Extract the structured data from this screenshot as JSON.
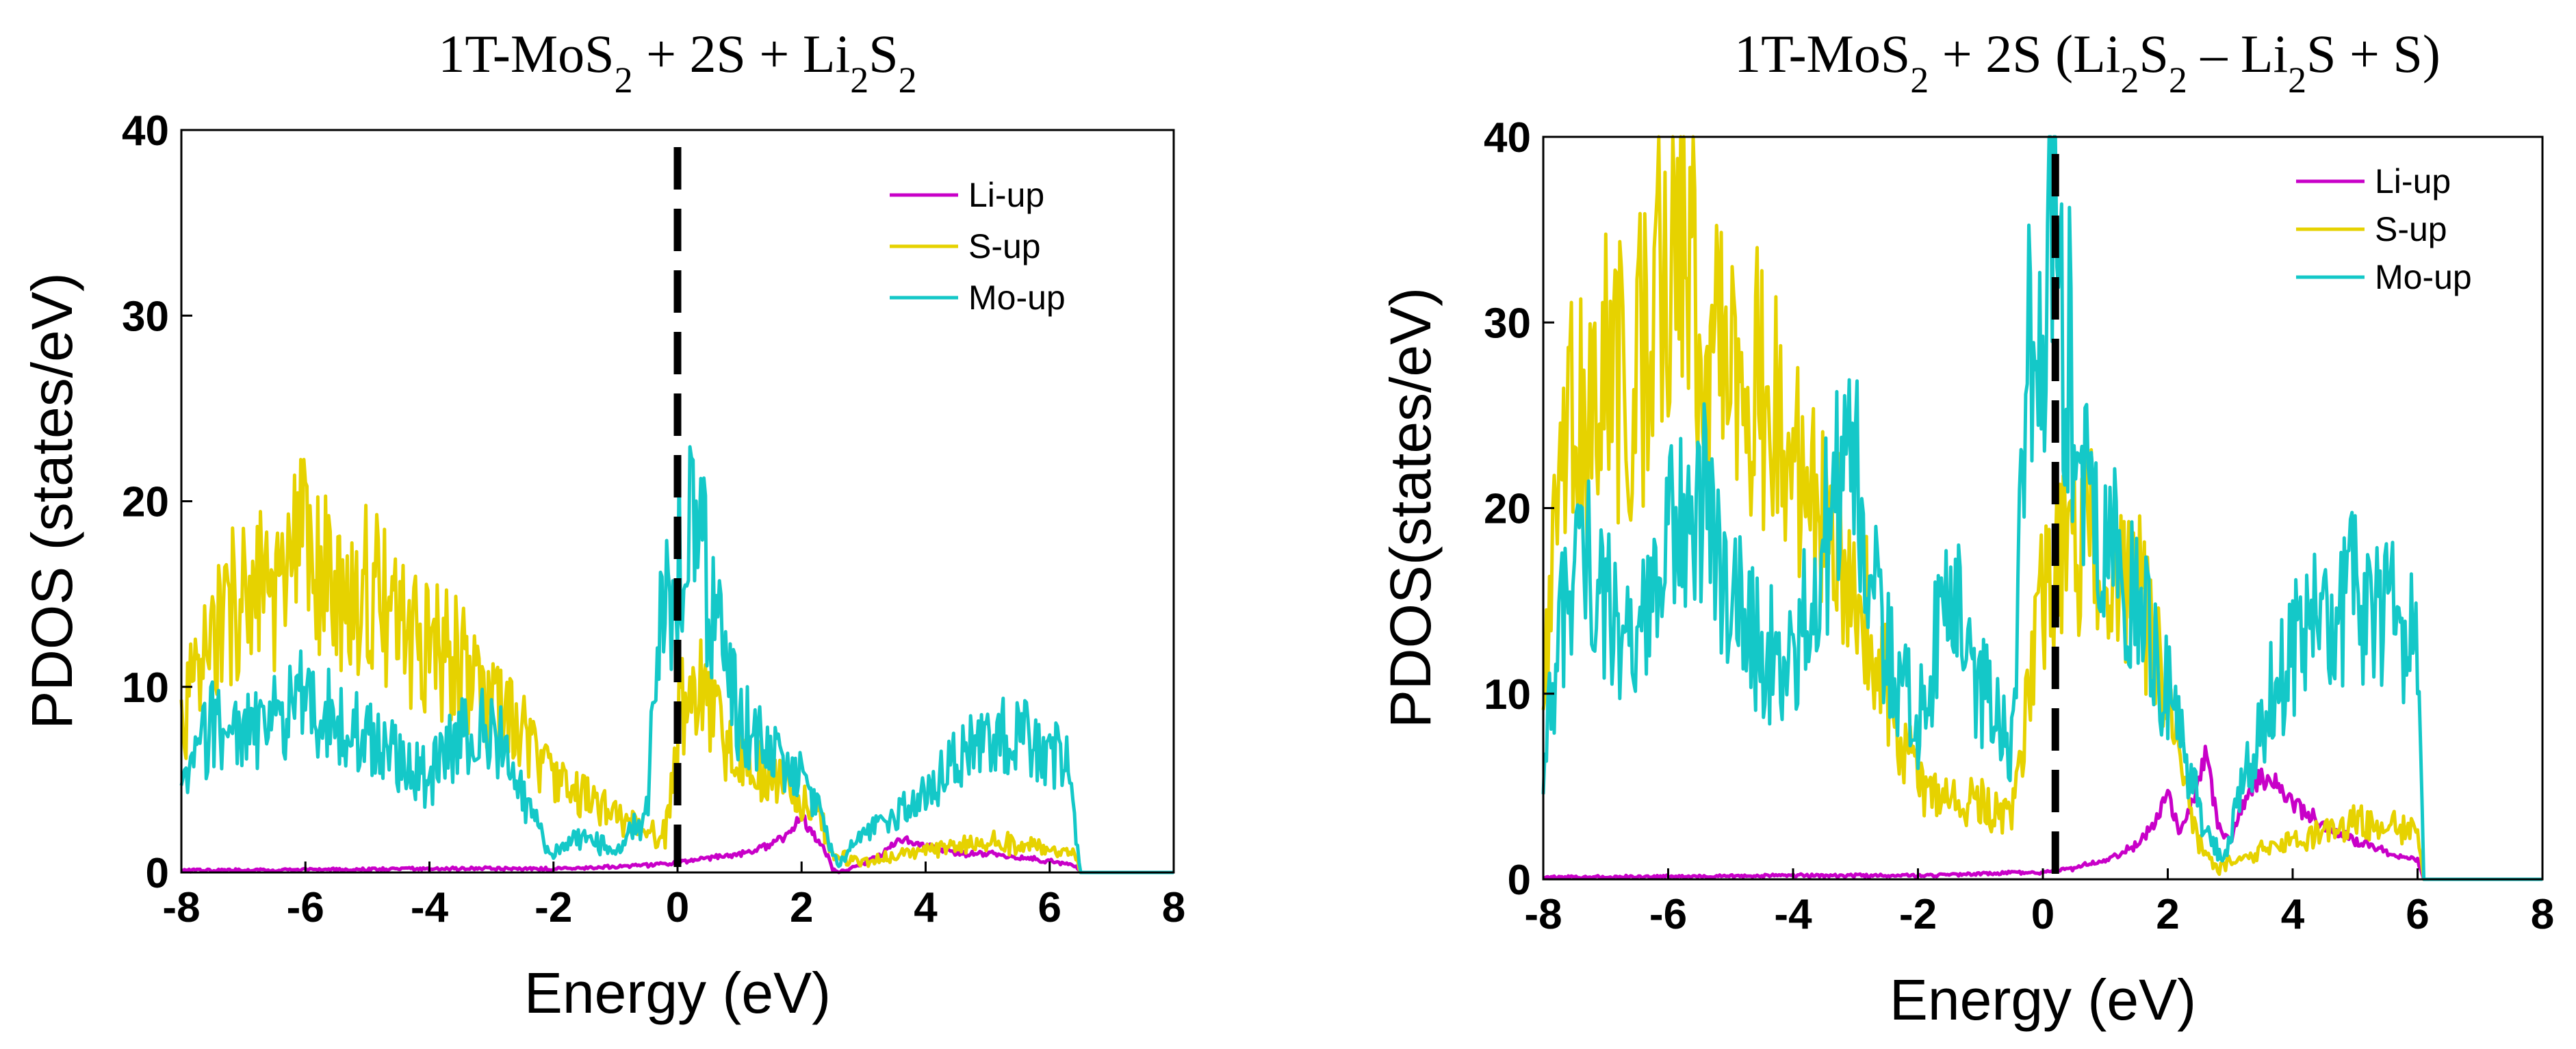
{
  "chart_data": [
    {
      "type": "line",
      "title_parts": {
        "a": "1T-MoS",
        "sub1": "2",
        "b": " + 2S + Li",
        "sub2": "2",
        "c": "S",
        "sub3": "2",
        "d": ""
      },
      "xlabel": "Energy (eV)",
      "ylabel": "PDOS (states/eV)",
      "xlim": [
        -8,
        8
      ],
      "ylim": [
        0,
        40
      ],
      "xticks": [
        -8,
        -6,
        -4,
        -2,
        0,
        2,
        4,
        6,
        8
      ],
      "yticks": [
        0,
        10,
        20,
        30,
        40
      ],
      "fermi_level": 0,
      "legend_position": "top-right",
      "series": [
        {
          "name": "Li-up",
          "color": "#c800c8",
          "x": [
            -8,
            -4,
            -2,
            -1,
            0,
            0.5,
            1,
            1.5,
            1.8,
            2.0,
            2.2,
            2.3,
            2.4,
            2.5,
            2.6,
            3.0,
            3.3,
            3.6,
            4.0,
            4.5,
            5.0,
            5.5,
            6.0,
            6.4,
            6.5,
            8
          ],
          "y": [
            0.1,
            0.2,
            0.2,
            0.3,
            0.5,
            0.8,
            1.0,
            1.5,
            2.0,
            3.0,
            2.0,
            1.5,
            1.0,
            0.2,
            0.0,
            0.5,
            1.0,
            1.8,
            1.4,
            1.0,
            1.0,
            0.8,
            0.6,
            0.4,
            0.0,
            0.0
          ]
        },
        {
          "name": "S-up",
          "color": "#e6d200",
          "x": [
            -8,
            -7.5,
            -7,
            -6.5,
            -6,
            -5.5,
            -5,
            -4.5,
            -4,
            -3.5,
            -3,
            -2.5,
            -2,
            -1.5,
            -1,
            -0.5,
            -0.2,
            0,
            0.3,
            0.6,
            1,
            1.5,
            2,
            2.3,
            2.5,
            3,
            3.5,
            4,
            4.5,
            5,
            5.5,
            6,
            6.4,
            6.5,
            8
          ],
          "y": [
            8,
            12,
            15,
            14,
            17,
            14,
            15,
            13,
            12,
            11,
            9,
            7,
            5,
            4,
            3,
            2,
            2,
            8,
            10,
            8,
            6,
            5,
            4,
            3,
            1,
            0.5,
            0.8,
            1.2,
            1.4,
            1.6,
            1.5,
            1.2,
            1.0,
            0.0,
            0.0
          ]
        },
        {
          "name": "Mo-up",
          "color": "#14c8c8",
          "x": [
            -8,
            -7.5,
            -7,
            -6.5,
            -6,
            -5.5,
            -5,
            -4.5,
            -4,
            -3.5,
            -3,
            -2.5,
            -2.2,
            -2,
            -1.5,
            -1,
            -0.5,
            -0.3,
            0,
            0.3,
            0.6,
            1,
            1.5,
            2,
            2.3,
            2.5,
            2.6,
            3.0,
            3.5,
            4,
            4.5,
            5,
            5.5,
            6,
            6.3,
            6.5,
            8
          ],
          "y": [
            4,
            8,
            7,
            8,
            9,
            8,
            7,
            6,
            5,
            7,
            8,
            4,
            2,
            1,
            2,
            1,
            3,
            12,
            17,
            18,
            13,
            8,
            6,
            5,
            3,
            1,
            0.5,
            2,
            3,
            4,
            6,
            7,
            7,
            6,
            6,
            0.0,
            0.0
          ]
        }
      ]
    },
    {
      "type": "line",
      "title_parts": {
        "a": "1T-MoS",
        "sub1": "2",
        "b": " + 2S (Li",
        "sub2": "2",
        "c": "S",
        "sub3": "2",
        "d": " – Li",
        "sub4": "2",
        "e": "S + S)"
      },
      "xlabel": "Energy (eV)",
      "ylabel": "PDOS(states/eV)",
      "xlim": [
        -8,
        8
      ],
      "ylim": [
        0,
        40
      ],
      "xticks": [
        -8,
        -6,
        -4,
        -2,
        0,
        2,
        4,
        6,
        8
      ],
      "yticks": [
        0,
        10,
        20,
        30,
        40
      ],
      "fermi_level": 0.2,
      "legend_position": "top-right",
      "series": [
        {
          "name": "Li-up",
          "color": "#c800c8",
          "x": [
            -8,
            -4,
            -2,
            -1,
            0,
            0.5,
            1,
            1.5,
            1.8,
            2.0,
            2.2,
            2.4,
            2.6,
            2.8,
            3.0,
            3.3,
            3.6,
            4.0,
            4.5,
            5.0,
            5.5,
            6.0,
            6.1,
            8
          ],
          "y": [
            0.1,
            0.2,
            0.2,
            0.3,
            0.4,
            0.6,
            1.0,
            1.8,
            3.0,
            4.5,
            2.5,
            4.0,
            7.0,
            3.0,
            2.0,
            5.0,
            5.5,
            4.0,
            3.0,
            2.0,
            1.5,
            1.0,
            0.0,
            0.0
          ]
        },
        {
          "name": "S-up",
          "color": "#e6d200",
          "x": [
            -8,
            -7.5,
            -7,
            -6.5,
            -6,
            -5.8,
            -5.5,
            -5,
            -4.5,
            -4,
            -3.5,
            -3,
            -2.5,
            -2,
            -1.5,
            -1,
            -0.5,
            -0.2,
            0,
            0.3,
            0.6,
            1,
            1.5,
            2,
            2.3,
            2.5,
            2.8,
            3.0,
            3.5,
            4,
            4.5,
            5,
            5.5,
            6,
            6.1,
            8
          ],
          "y": [
            12,
            25,
            27,
            26,
            33,
            38,
            28,
            25,
            26,
            22,
            20,
            16,
            10,
            5,
            4,
            4,
            3,
            10,
            15,
            17,
            18,
            16,
            15,
            10,
            5,
            2,
            0.5,
            1,
            1.5,
            2,
            2.5,
            3,
            3,
            2.5,
            0.0,
            0.0
          ]
        },
        {
          "name": "Mo-up",
          "color": "#14c8c8",
          "x": [
            -8,
            -7.5,
            -7,
            -6.5,
            -6,
            -5.5,
            -5,
            -4.5,
            -4,
            -3.5,
            -3,
            -2.5,
            -2,
            -1.5,
            -1,
            -0.5,
            -0.2,
            0,
            0.2,
            0.4,
            0.6,
            1,
            1.5,
            2,
            2.3,
            2.6,
            2.9,
            3.2,
            3.6,
            4,
            4.5,
            5,
            5.5,
            6,
            6.1,
            8
          ],
          "y": [
            6,
            18,
            14,
            12,
            17,
            20,
            15,
            12,
            11,
            18,
            22,
            12,
            8,
            15,
            10,
            7,
            30,
            32,
            34,
            28,
            20,
            18,
            14,
            10,
            6,
            3,
            1,
            5,
            9,
            12,
            14,
            15,
            14,
            12,
            0.0,
            0.0
          ]
        }
      ]
    }
  ]
}
